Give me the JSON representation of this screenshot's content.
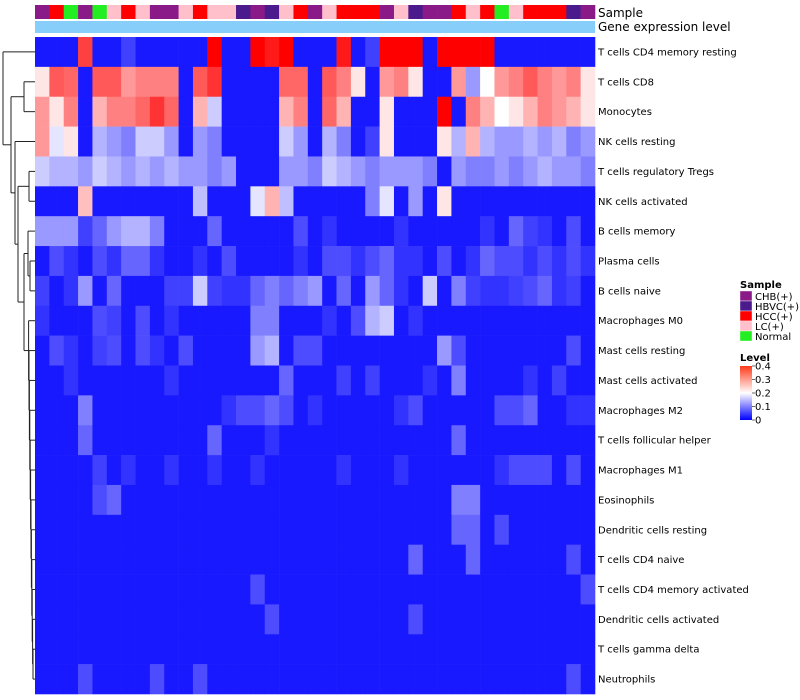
{
  "chart_data": {
    "type": "heatmap",
    "title": "",
    "annotation_labels": [
      "Sample",
      "Gene expression level"
    ],
    "rows": [
      "T cells CD4 memory resting",
      "T cells CD8",
      "Monocytes",
      "NK cells resting",
      "T cells regulatory  Tregs",
      "NK cells activated",
      "B cells memory",
      "Plasma cells",
      "B cells naive",
      "Macrophages M0",
      "Mast cells resting",
      "Mast cells activated",
      "Macrophages M2",
      "T cells follicular helper",
      "Macrophages M1",
      "Eosinophils",
      "Dendritic cells resting",
      "T cells CD4 naive",
      "T cells CD4 memory activated",
      "Dendritic cells activated",
      "T cells gamma delta",
      "Neutrophils"
    ],
    "sample_annotation": [
      "CHB(+)",
      "HCC(+)",
      "Normal",
      "CHB(+)",
      "Normal",
      "LC(+)",
      "HCC(+)",
      "LC(+)",
      "CHB(+)",
      "CHB(+)",
      "LC(+)",
      "HCC(+)",
      "LC(+)",
      "LC(+)",
      "HBVC(+)",
      "CHB(+)",
      "HBVC(+)",
      "LC(+)",
      "HCC(+)",
      "CHB(+)",
      "LC(+)",
      "HCC(+)",
      "HCC(+)",
      "HCC(+)",
      "CHB(+)",
      "LC(+)",
      "HBVC(+)",
      "CHB(+)",
      "CHB(+)",
      "HCC(+)",
      "LC(+)",
      "HCC(+)",
      "Normal",
      "LC(+)",
      "HCC(+)",
      "HCC(+)",
      "HCC(+)",
      "HBVC(+)",
      "CHB(+)"
    ],
    "expression_level_annotation": "light blue (uniform)",
    "values": [
      [
        0.02,
        0.02,
        0.02,
        0.35,
        0.02,
        0.02,
        0.05,
        0.02,
        0.02,
        0.02,
        0.02,
        0.02,
        0.4,
        0.02,
        0.02,
        0.4,
        0.38,
        0.4,
        0.02,
        0.02,
        0.02,
        0.38,
        0.02,
        0.05,
        0.4,
        0.4,
        0.4,
        0.02,
        0.4,
        0.4,
        0.4,
        0.4,
        0.02,
        0.02,
        0.02,
        0.02,
        0.02,
        0.02,
        0.02
      ],
      [
        0.22,
        0.33,
        0.32,
        0.02,
        0.33,
        0.33,
        0.28,
        0.3,
        0.3,
        0.3,
        0.02,
        0.33,
        0.36,
        0.02,
        0.02,
        0.02,
        0.02,
        0.32,
        0.32,
        0.02,
        0.33,
        0.3,
        0.22,
        0.02,
        0.28,
        0.3,
        0.22,
        0.02,
        0.02,
        0.28,
        0.12,
        0.2,
        0.28,
        0.3,
        0.33,
        0.3,
        0.28,
        0.3,
        0.22
      ],
      [
        0.28,
        0.22,
        0.3,
        0.02,
        0.26,
        0.3,
        0.3,
        0.32,
        0.36,
        0.32,
        0.02,
        0.26,
        0.16,
        0.02,
        0.02,
        0.02,
        0.02,
        0.26,
        0.3,
        0.02,
        0.32,
        0.26,
        0.02,
        0.02,
        0.22,
        0.02,
        0.02,
        0.02,
        0.4,
        0.02,
        0.3,
        0.26,
        0.2,
        0.22,
        0.26,
        0.3,
        0.28,
        0.26,
        0.22
      ],
      [
        0.28,
        0.18,
        0.22,
        0.02,
        0.14,
        0.12,
        0.1,
        0.16,
        0.16,
        0.12,
        0.02,
        0.12,
        0.1,
        0.02,
        0.02,
        0.02,
        0.02,
        0.16,
        0.12,
        0.02,
        0.14,
        0.1,
        0.02,
        0.05,
        0.22,
        0.02,
        0.02,
        0.02,
        0.22,
        0.14,
        0.26,
        0.14,
        0.12,
        0.12,
        0.14,
        0.12,
        0.14,
        0.1,
        0.12
      ],
      [
        0.16,
        0.14,
        0.14,
        0.12,
        0.16,
        0.14,
        0.12,
        0.14,
        0.12,
        0.14,
        0.12,
        0.12,
        0.1,
        0.12,
        0.02,
        0.02,
        0.02,
        0.12,
        0.12,
        0.1,
        0.16,
        0.14,
        0.12,
        0.1,
        0.12,
        0.12,
        0.12,
        0.1,
        0.02,
        0.12,
        0.1,
        0.1,
        0.12,
        0.1,
        0.12,
        0.14,
        0.12,
        0.12,
        0.1
      ],
      [
        0.02,
        0.02,
        0.02,
        0.25,
        0.02,
        0.02,
        0.02,
        0.02,
        0.02,
        0.02,
        0.02,
        0.15,
        0.02,
        0.02,
        0.02,
        0.18,
        0.26,
        0.15,
        0.02,
        0.02,
        0.02,
        0.02,
        0.02,
        0.1,
        0.18,
        0.02,
        0.12,
        0.02,
        0.22,
        0.02,
        0.02,
        0.02,
        0.02,
        0.02,
        0.02,
        0.02,
        0.02,
        0.02,
        0.02
      ],
      [
        0.12,
        0.12,
        0.12,
        0.05,
        0.08,
        0.12,
        0.14,
        0.14,
        0.1,
        0.02,
        0.02,
        0.02,
        0.08,
        0.02,
        0.02,
        0.02,
        0.02,
        0.02,
        0.06,
        0.02,
        0.04,
        0.02,
        0.02,
        0.02,
        0.02,
        0.04,
        0.02,
        0.02,
        0.02,
        0.02,
        0.02,
        0.04,
        0.02,
        0.08,
        0.05,
        0.04,
        0.02,
        0.06,
        0.02
      ],
      [
        0.02,
        0.06,
        0.04,
        0.02,
        0.06,
        0.04,
        0.08,
        0.08,
        0.04,
        0.02,
        0.02,
        0.04,
        0.02,
        0.06,
        0.02,
        0.02,
        0.02,
        0.02,
        0.04,
        0.02,
        0.06,
        0.06,
        0.04,
        0.06,
        0.08,
        0.04,
        0.04,
        0.02,
        0.06,
        0.02,
        0.04,
        0.08,
        0.06,
        0.06,
        0.04,
        0.06,
        0.04,
        0.06,
        0.04
      ],
      [
        0.05,
        0.02,
        0.04,
        0.12,
        0.02,
        0.08,
        0.02,
        0.02,
        0.02,
        0.05,
        0.05,
        0.16,
        0.05,
        0.04,
        0.04,
        0.08,
        0.1,
        0.08,
        0.1,
        0.12,
        0.02,
        0.08,
        0.02,
        0.12,
        0.08,
        0.04,
        0.02,
        0.16,
        0.02,
        0.1,
        0.05,
        0.04,
        0.04,
        0.05,
        0.06,
        0.08,
        0.04,
        0.05,
        0.02
      ],
      [
        0.04,
        0.02,
        0.02,
        0.02,
        0.06,
        0.05,
        0.02,
        0.06,
        0.02,
        0.04,
        0.02,
        0.02,
        0.02,
        0.02,
        0.02,
        0.1,
        0.1,
        0.02,
        0.02,
        0.02,
        0.04,
        0.02,
        0.06,
        0.14,
        0.16,
        0.02,
        0.04,
        0.02,
        0.02,
        0.02,
        0.02,
        0.02,
        0.02,
        0.02,
        0.02,
        0.02,
        0.02,
        0.02,
        0.02
      ],
      [
        0.02,
        0.06,
        0.04,
        0.02,
        0.05,
        0.06,
        0.02,
        0.06,
        0.04,
        0.02,
        0.06,
        0.02,
        0.02,
        0.02,
        0.02,
        0.12,
        0.14,
        0.02,
        0.06,
        0.06,
        0.02,
        0.02,
        0.02,
        0.02,
        0.02,
        0.02,
        0.02,
        0.02,
        0.12,
        0.06,
        0.02,
        0.02,
        0.02,
        0.02,
        0.02,
        0.02,
        0.02,
        0.06,
        0.02
      ],
      [
        0.02,
        0.02,
        0.04,
        0.02,
        0.02,
        0.02,
        0.02,
        0.02,
        0.02,
        0.04,
        0.02,
        0.02,
        0.02,
        0.02,
        0.02,
        0.02,
        0.02,
        0.08,
        0.02,
        0.02,
        0.02,
        0.05,
        0.02,
        0.05,
        0.02,
        0.02,
        0.02,
        0.04,
        0.02,
        0.1,
        0.02,
        0.02,
        0.02,
        0.02,
        0.04,
        0.02,
        0.05,
        0.02,
        0.02
      ],
      [
        0.02,
        0.02,
        0.02,
        0.1,
        0.02,
        0.02,
        0.02,
        0.02,
        0.02,
        0.02,
        0.02,
        0.02,
        0.02,
        0.04,
        0.06,
        0.06,
        0.08,
        0.06,
        0.02,
        0.04,
        0.02,
        0.02,
        0.02,
        0.02,
        0.02,
        0.04,
        0.06,
        0.02,
        0.02,
        0.02,
        0.02,
        0.02,
        0.06,
        0.06,
        0.08,
        0.02,
        0.02,
        0.04,
        0.04
      ],
      [
        0.02,
        0.02,
        0.02,
        0.08,
        0.02,
        0.02,
        0.02,
        0.02,
        0.02,
        0.02,
        0.02,
        0.02,
        0.08,
        0.02,
        0.02,
        0.02,
        0.04,
        0.02,
        0.02,
        0.02,
        0.02,
        0.02,
        0.02,
        0.02,
        0.02,
        0.02,
        0.02,
        0.02,
        0.02,
        0.08,
        0.02,
        0.02,
        0.02,
        0.02,
        0.02,
        0.02,
        0.02,
        0.02,
        0.02
      ],
      [
        0.02,
        0.02,
        0.02,
        0.02,
        0.05,
        0.02,
        0.04,
        0.02,
        0.02,
        0.04,
        0.02,
        0.02,
        0.04,
        0.02,
        0.02,
        0.04,
        0.02,
        0.02,
        0.02,
        0.02,
        0.02,
        0.04,
        0.02,
        0.02,
        0.02,
        0.04,
        0.02,
        0.02,
        0.02,
        0.02,
        0.02,
        0.02,
        0.04,
        0.06,
        0.06,
        0.06,
        0.02,
        0.06,
        0.02
      ],
      [
        0.02,
        0.02,
        0.02,
        0.02,
        0.06,
        0.08,
        0.02,
        0.02,
        0.02,
        0.02,
        0.02,
        0.02,
        0.02,
        0.02,
        0.02,
        0.02,
        0.02,
        0.02,
        0.02,
        0.02,
        0.02,
        0.02,
        0.02,
        0.02,
        0.02,
        0.02,
        0.02,
        0.02,
        0.02,
        0.1,
        0.1,
        0.02,
        0.02,
        0.02,
        0.02,
        0.02,
        0.02,
        0.02,
        0.02
      ],
      [
        0.02,
        0.02,
        0.02,
        0.02,
        0.02,
        0.02,
        0.02,
        0.02,
        0.02,
        0.02,
        0.02,
        0.02,
        0.02,
        0.02,
        0.02,
        0.02,
        0.02,
        0.02,
        0.02,
        0.02,
        0.02,
        0.02,
        0.02,
        0.02,
        0.02,
        0.02,
        0.02,
        0.02,
        0.02,
        0.08,
        0.08,
        0.02,
        0.06,
        0.02,
        0.02,
        0.02,
        0.02,
        0.02,
        0.02
      ],
      [
        0.02,
        0.02,
        0.02,
        0.02,
        0.02,
        0.02,
        0.02,
        0.02,
        0.02,
        0.02,
        0.02,
        0.02,
        0.02,
        0.02,
        0.02,
        0.02,
        0.02,
        0.02,
        0.02,
        0.02,
        0.02,
        0.02,
        0.02,
        0.02,
        0.02,
        0.02,
        0.08,
        0.02,
        0.02,
        0.02,
        0.08,
        0.02,
        0.02,
        0.02,
        0.02,
        0.02,
        0.02,
        0.06,
        0.02
      ],
      [
        0.02,
        0.02,
        0.02,
        0.02,
        0.02,
        0.02,
        0.02,
        0.02,
        0.02,
        0.02,
        0.02,
        0.02,
        0.02,
        0.02,
        0.02,
        0.06,
        0.02,
        0.02,
        0.02,
        0.02,
        0.02,
        0.02,
        0.02,
        0.02,
        0.02,
        0.02,
        0.02,
        0.02,
        0.02,
        0.02,
        0.02,
        0.02,
        0.02,
        0.02,
        0.02,
        0.02,
        0.02,
        0.02,
        0.06
      ],
      [
        0.02,
        0.02,
        0.02,
        0.02,
        0.02,
        0.02,
        0.02,
        0.02,
        0.02,
        0.02,
        0.02,
        0.02,
        0.02,
        0.02,
        0.02,
        0.02,
        0.06,
        0.02,
        0.02,
        0.02,
        0.02,
        0.02,
        0.02,
        0.02,
        0.02,
        0.02,
        0.06,
        0.02,
        0.02,
        0.02,
        0.02,
        0.02,
        0.02,
        0.02,
        0.02,
        0.02,
        0.02,
        0.02,
        0.02
      ],
      [
        0.02,
        0.02,
        0.02,
        0.02,
        0.02,
        0.02,
        0.02,
        0.02,
        0.02,
        0.02,
        0.02,
        0.02,
        0.02,
        0.02,
        0.02,
        0.02,
        0.02,
        0.02,
        0.02,
        0.02,
        0.02,
        0.02,
        0.02,
        0.02,
        0.02,
        0.02,
        0.02,
        0.02,
        0.02,
        0.02,
        0.02,
        0.02,
        0.02,
        0.02,
        0.02,
        0.02,
        0.02,
        0.02,
        0.02
      ],
      [
        0.02,
        0.02,
        0.02,
        0.06,
        0.02,
        0.02,
        0.02,
        0.02,
        0.06,
        0.02,
        0.02,
        0.06,
        0.02,
        0.02,
        0.02,
        0.02,
        0.02,
        0.02,
        0.02,
        0.02,
        0.02,
        0.02,
        0.02,
        0.02,
        0.02,
        0.02,
        0.02,
        0.02,
        0.02,
        0.02,
        0.02,
        0.02,
        0.02,
        0.02,
        0.02,
        0.02,
        0.02,
        0.06,
        0.02
      ]
    ],
    "legend": {
      "sample_title": "Sample",
      "sample_entries": [
        {
          "label": "CHB(+)",
          "color": "#8b1a89"
        },
        {
          "label": "HBVC(+)",
          "color": "#4b1a8c"
        },
        {
          "label": "HCC(+)",
          "color": "#ff0000"
        },
        {
          "label": "LC(+)",
          "color": "#ffc0cb"
        },
        {
          "label": "Normal",
          "color": "#22ee22"
        }
      ],
      "level_title": "Level",
      "level_ticks": [
        "0.4",
        "0.3",
        "0.2",
        "0.1",
        "0"
      ],
      "level_range": [
        0,
        0.4
      ]
    },
    "colors": {
      "low": "#0000ff",
      "mid": "#ffffff",
      "high": "#ff0000",
      "expression_bar": "#87cefa"
    }
  }
}
